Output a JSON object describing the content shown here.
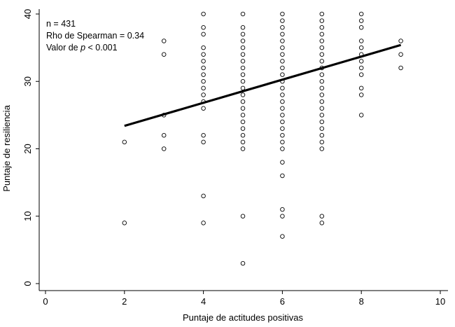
{
  "chart_data": {
    "type": "scatter",
    "title": "",
    "xlabel": "Puntaje de actitudes positivas",
    "ylabel": "Puntaje de resiliencia",
    "xlim": [
      0,
      10
    ],
    "ylim": [
      0,
      40
    ],
    "xticks": [
      "0",
      "2",
      "4",
      "6",
      "8",
      "10"
    ],
    "yticks": [
      "0",
      "10",
      "20",
      "30",
      "40"
    ],
    "grid": false,
    "annotations": {
      "line1": "n = 431",
      "line2": "Rho de Spearman = 0.34",
      "line3_prefix": "Valor de ",
      "line3_italic": "p",
      "line3_suffix": " < 0.001"
    },
    "trend_line": {
      "x": [
        2,
        9
      ],
      "y": [
        23.4,
        35.4
      ]
    },
    "points": [
      [
        2,
        9
      ],
      [
        2,
        21
      ],
      [
        3,
        20
      ],
      [
        3,
        22
      ],
      [
        3,
        25
      ],
      [
        3,
        34
      ],
      [
        3,
        36
      ],
      [
        4,
        9
      ],
      [
        4,
        13
      ],
      [
        4,
        21
      ],
      [
        4,
        22
      ],
      [
        4,
        26
      ],
      [
        4,
        27
      ],
      [
        4,
        28
      ],
      [
        4,
        29
      ],
      [
        4,
        30
      ],
      [
        4,
        31
      ],
      [
        4,
        32
      ],
      [
        4,
        33
      ],
      [
        4,
        34
      ],
      [
        4,
        35
      ],
      [
        4,
        37
      ],
      [
        4,
        38
      ],
      [
        4,
        40
      ],
      [
        5,
        3
      ],
      [
        5,
        10
      ],
      [
        5,
        20
      ],
      [
        5,
        21
      ],
      [
        5,
        22
      ],
      [
        5,
        23
      ],
      [
        5,
        24
      ],
      [
        5,
        25
      ],
      [
        5,
        26
      ],
      [
        5,
        27
      ],
      [
        5,
        28
      ],
      [
        5,
        29
      ],
      [
        5,
        30
      ],
      [
        5,
        31
      ],
      [
        5,
        32
      ],
      [
        5,
        33
      ],
      [
        5,
        34
      ],
      [
        5,
        35
      ],
      [
        5,
        36
      ],
      [
        5,
        37
      ],
      [
        5,
        38
      ],
      [
        5,
        40
      ],
      [
        6,
        7
      ],
      [
        6,
        10
      ],
      [
        6,
        11
      ],
      [
        6,
        16
      ],
      [
        6,
        18
      ],
      [
        6,
        20
      ],
      [
        6,
        21
      ],
      [
        6,
        22
      ],
      [
        6,
        23
      ],
      [
        6,
        24
      ],
      [
        6,
        25
      ],
      [
        6,
        26
      ],
      [
        6,
        27
      ],
      [
        6,
        28
      ],
      [
        6,
        29
      ],
      [
        6,
        30
      ],
      [
        6,
        31
      ],
      [
        6,
        32
      ],
      [
        6,
        33
      ],
      [
        6,
        34
      ],
      [
        6,
        35
      ],
      [
        6,
        36
      ],
      [
        6,
        37
      ],
      [
        6,
        38
      ],
      [
        6,
        39
      ],
      [
        6,
        40
      ],
      [
        7,
        9
      ],
      [
        7,
        10
      ],
      [
        7,
        20
      ],
      [
        7,
        21
      ],
      [
        7,
        22
      ],
      [
        7,
        23
      ],
      [
        7,
        24
      ],
      [
        7,
        25
      ],
      [
        7,
        26
      ],
      [
        7,
        27
      ],
      [
        7,
        28
      ],
      [
        7,
        29
      ],
      [
        7,
        30
      ],
      [
        7,
        31
      ],
      [
        7,
        32
      ],
      [
        7,
        33
      ],
      [
        7,
        34
      ],
      [
        7,
        35
      ],
      [
        7,
        36
      ],
      [
        7,
        37
      ],
      [
        7,
        38
      ],
      [
        7,
        39
      ],
      [
        7,
        40
      ],
      [
        8,
        25
      ],
      [
        8,
        28
      ],
      [
        8,
        29
      ],
      [
        8,
        31
      ],
      [
        8,
        32
      ],
      [
        8,
        33
      ],
      [
        8,
        34
      ],
      [
        8,
        35
      ],
      [
        8,
        36
      ],
      [
        8,
        38
      ],
      [
        8,
        39
      ],
      [
        8,
        40
      ],
      [
        9,
        32
      ],
      [
        9,
        34
      ],
      [
        9,
        36
      ]
    ]
  }
}
